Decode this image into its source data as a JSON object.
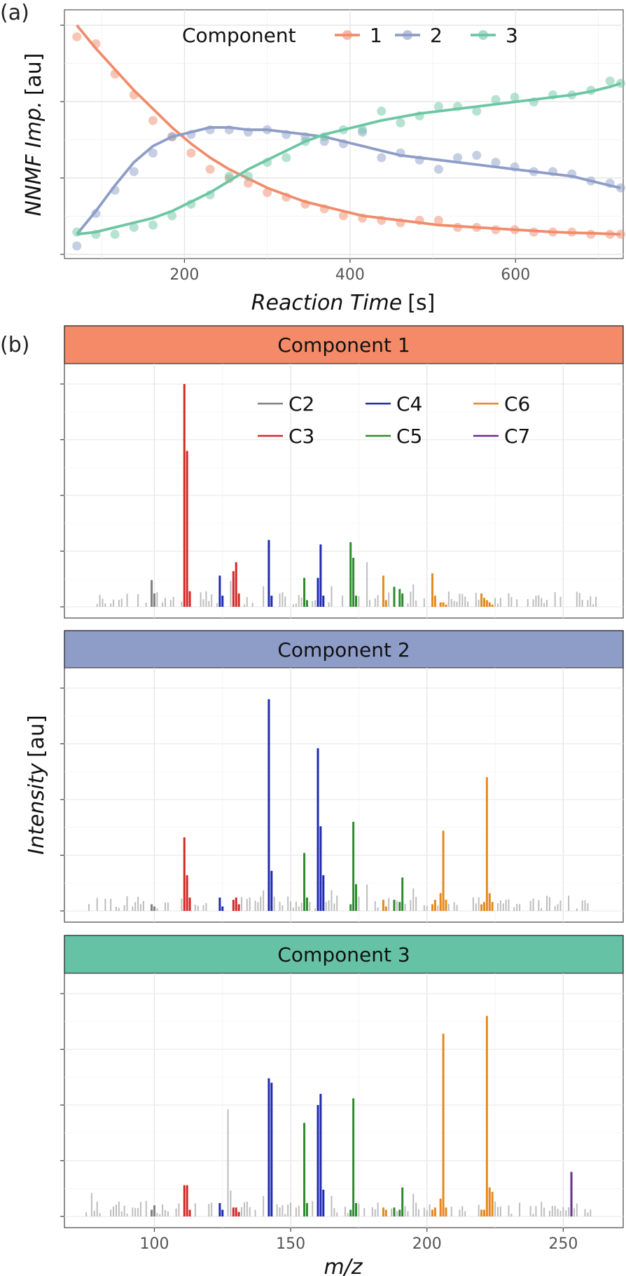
{
  "panel_a": {
    "tag": "(a)",
    "legend_title": "Component",
    "colors": {
      "1": "#F08C6B",
      "2": "#8E9DC8",
      "3": "#6CC6A4"
    },
    "x_tick_labels": [
      "200",
      "400",
      "600"
    ],
    "xlabel_italic": "Reaction Time",
    "xlabel_unit": "[s]",
    "ylabel_italic": "NNMF Imp.",
    "ylabel_unit": "[au]"
  },
  "panel_b": {
    "tag": "(b)",
    "strip_colors": [
      "#F48A67",
      "#8E9DC8",
      "#66C2A5"
    ],
    "x_tick_labels": [
      "100",
      "150",
      "200",
      "250"
    ],
    "xlabel": "m/z",
    "ylabel_italic": "Intensity",
    "ylabel_unit": "[au]",
    "legend": [
      {
        "label": "C2",
        "color": "#808080"
      },
      {
        "label": "C3",
        "color": "#D62728"
      },
      {
        "label": "C4",
        "color": "#1F2AAF"
      },
      {
        "label": "C5",
        "color": "#2E8B2E"
      },
      {
        "label": "C6",
        "color": "#E58A1F"
      },
      {
        "label": "C7",
        "color": "#6A2C8C"
      }
    ],
    "background_peak_color": "#BDBDBD"
  },
  "chart_data": [
    {
      "type": "line",
      "title": "",
      "xlabel": "Reaction Time [s]",
      "ylabel": "NNMF Imp. [au]",
      "xlim": [
        55,
        730
      ],
      "ylim": [
        0,
        1
      ],
      "grid": true,
      "legend_placement": "top-center",
      "series": [
        {
          "name": "1",
          "color": "#F08C6B",
          "x": [
            70,
            93,
            116,
            139,
            162,
            185,
            208,
            231,
            254,
            277,
            300,
            323,
            346,
            369,
            392,
            415,
            438,
            461,
            484,
            507,
            530,
            553,
            576,
            599,
            622,
            645,
            668,
            691,
            714,
            727
          ],
          "points": [
            0.9,
            0.87,
            0.74,
            0.65,
            0.54,
            0.47,
            0.4,
            0.33,
            0.29,
            0.27,
            0.23,
            0.21,
            0.18,
            0.16,
            0.13,
            0.12,
            0.11,
            0.1,
            0.11,
            0.11,
            0.08,
            0.08,
            0.07,
            0.07,
            0.06,
            0.06,
            0.06,
            0.05,
            0.05,
            0.05
          ],
          "fit": [
            0.95,
            0.85,
            0.76,
            0.67,
            0.59,
            0.51,
            0.44,
            0.38,
            0.33,
            0.29,
            0.25,
            0.22,
            0.19,
            0.17,
            0.15,
            0.13,
            0.12,
            0.11,
            0.1,
            0.09,
            0.085,
            0.08,
            0.075,
            0.07,
            0.065,
            0.06,
            0.057,
            0.055,
            0.052,
            0.05
          ]
        },
        {
          "name": "2",
          "color": "#8E9DC8",
          "x": [
            70,
            93,
            116,
            139,
            162,
            185,
            208,
            231,
            254,
            277,
            300,
            323,
            346,
            369,
            392,
            415,
            438,
            461,
            484,
            507,
            530,
            553,
            576,
            599,
            622,
            645,
            668,
            691,
            714,
            727
          ],
          "points": [
            0.0,
            0.14,
            0.24,
            0.32,
            0.4,
            0.47,
            0.48,
            0.5,
            0.5,
            0.49,
            0.5,
            0.48,
            0.47,
            0.45,
            0.44,
            0.49,
            0.38,
            0.4,
            0.37,
            0.33,
            0.38,
            0.39,
            0.36,
            0.34,
            0.32,
            0.32,
            0.31,
            0.28,
            0.27,
            0.25
          ],
          "fit": [
            0.05,
            0.15,
            0.26,
            0.36,
            0.43,
            0.47,
            0.49,
            0.51,
            0.51,
            0.5,
            0.5,
            0.49,
            0.48,
            0.47,
            0.45,
            0.43,
            0.41,
            0.39,
            0.38,
            0.37,
            0.36,
            0.35,
            0.34,
            0.33,
            0.32,
            0.31,
            0.3,
            0.28,
            0.26,
            0.25
          ]
        },
        {
          "name": "3",
          "color": "#6CC6A4",
          "x": [
            70,
            93,
            116,
            139,
            162,
            185,
            208,
            231,
            254,
            277,
            300,
            323,
            346,
            369,
            392,
            415,
            438,
            461,
            484,
            507,
            530,
            553,
            576,
            599,
            622,
            645,
            668,
            691,
            714,
            727
          ],
          "points": [
            0.06,
            0.05,
            0.05,
            0.08,
            0.09,
            0.13,
            0.18,
            0.22,
            0.3,
            0.3,
            0.36,
            0.38,
            0.45,
            0.47,
            0.5,
            0.5,
            0.58,
            0.53,
            0.56,
            0.6,
            0.6,
            0.58,
            0.63,
            0.64,
            0.62,
            0.65,
            0.65,
            0.67,
            0.71,
            0.7
          ],
          "fit": [
            0.05,
            0.06,
            0.08,
            0.1,
            0.12,
            0.15,
            0.19,
            0.23,
            0.28,
            0.33,
            0.37,
            0.41,
            0.45,
            0.48,
            0.5,
            0.52,
            0.54,
            0.555,
            0.57,
            0.58,
            0.59,
            0.6,
            0.61,
            0.62,
            0.63,
            0.64,
            0.65,
            0.665,
            0.685,
            0.7
          ]
        }
      ]
    },
    {
      "type": "bar",
      "panels": [
        "Component 1",
        "Component 2",
        "Component 3"
      ],
      "xlabel": "m/z",
      "ylabel": "Intensity [au]",
      "xlim": [
        67,
        272
      ],
      "ylim": [
        0,
        1
      ],
      "grid": true,
      "legend_placement": "top-right of Component 1 panel",
      "series_note_classes": [
        "C2",
        "C3",
        "C4",
        "C5",
        "C6",
        "C7"
      ],
      "peaks": [
        {
          "mz": 99,
          "class": "C2",
          "v": [
            0.12,
            0.03,
            0.03
          ]
        },
        {
          "mz": 100,
          "class": "C2",
          "v": [
            0.06,
            0.02,
            0.05
          ]
        },
        {
          "mz": 111,
          "class": "C3",
          "v": [
            1.0,
            0.33,
            0.14
          ]
        },
        {
          "mz": 112,
          "class": "C3",
          "v": [
            0.7,
            0.16,
            0.14
          ]
        },
        {
          "mz": 113,
          "class": "C3",
          "v": [
            0.07,
            0.06,
            0.03
          ]
        },
        {
          "mz": 124,
          "class": "C4",
          "v": [
            0.14,
            0.06,
            0.06
          ]
        },
        {
          "mz": 125,
          "class": "C4",
          "v": [
            0.05,
            0.02,
            0.03
          ]
        },
        {
          "mz": 129,
          "class": "C3",
          "v": [
            0.16,
            0.05,
            0.04
          ]
        },
        {
          "mz": 130,
          "class": "C3",
          "v": [
            0.2,
            0.06,
            0.04
          ]
        },
        {
          "mz": 131,
          "class": "C3",
          "v": [
            0.06,
            0.03,
            0.02
          ]
        },
        {
          "mz": 142,
          "class": "C4",
          "v": [
            0.3,
            0.95,
            0.62
          ]
        },
        {
          "mz": 143,
          "class": "C4",
          "v": [
            0.05,
            0.18,
            0.6
          ]
        },
        {
          "mz": 155,
          "class": "C5",
          "v": [
            0.13,
            0.26,
            0.42
          ]
        },
        {
          "mz": 156,
          "class": "C5",
          "v": [
            0.03,
            0.06,
            0.06
          ]
        },
        {
          "mz": 160,
          "class": "C4",
          "v": [
            0.13,
            0.73,
            0.5
          ]
        },
        {
          "mz": 161,
          "class": "C4",
          "v": [
            0.28,
            0.38,
            0.55
          ]
        },
        {
          "mz": 162,
          "class": "C4",
          "v": [
            0.05,
            0.16,
            0.12
          ]
        },
        {
          "mz": 172,
          "class": "C5",
          "v": [
            0.29,
            0.03,
            0.03
          ]
        },
        {
          "mz": 173,
          "class": "C5",
          "v": [
            0.22,
            0.4,
            0.53
          ]
        },
        {
          "mz": 174,
          "class": "C5",
          "v": [
            0.05,
            0.12,
            0.06
          ]
        },
        {
          "mz": 184,
          "class": "C6",
          "v": [
            0.14,
            0.05,
            0.04
          ]
        },
        {
          "mz": 185,
          "class": "C6",
          "v": [
            0.03,
            0.02,
            0.03
          ]
        },
        {
          "mz": 188,
          "class": "C5",
          "v": [
            0.09,
            0.05,
            0.04
          ]
        },
        {
          "mz": 190,
          "class": "C5",
          "v": [
            0.08,
            0.04,
            0.03
          ]
        },
        {
          "mz": 191,
          "class": "C5",
          "v": [
            0.06,
            0.15,
            0.13
          ]
        },
        {
          "mz": 202,
          "class": "C6",
          "v": [
            0.15,
            0.03,
            0.03
          ]
        },
        {
          "mz": 203,
          "class": "C6",
          "v": [
            0.05,
            0.05,
            0.04
          ]
        },
        {
          "mz": 205,
          "class": "C6",
          "v": [
            0.02,
            0.08,
            0.08
          ]
        },
        {
          "mz": 206,
          "class": "C6",
          "v": [
            0.02,
            0.36,
            0.82
          ]
        },
        {
          "mz": 207,
          "class": "C6",
          "v": [
            0.01,
            0.05,
            0.04
          ]
        },
        {
          "mz": 220,
          "class": "C6",
          "v": [
            0.06,
            0.03,
            0.03
          ]
        },
        {
          "mz": 221,
          "class": "C6",
          "v": [
            0.04,
            0.04,
            0.03
          ]
        },
        {
          "mz": 222,
          "class": "C6",
          "v": [
            0.03,
            0.6,
            0.9
          ]
        },
        {
          "mz": 223,
          "class": "C6",
          "v": [
            0.02,
            0.08,
            0.13
          ]
        },
        {
          "mz": 224,
          "class": "C6",
          "v": [
            0.01,
            0.04,
            0.11
          ]
        },
        {
          "mz": 253,
          "class": "C7",
          "v": [
            0.0,
            0.0,
            0.2
          ]
        }
      ]
    }
  ]
}
